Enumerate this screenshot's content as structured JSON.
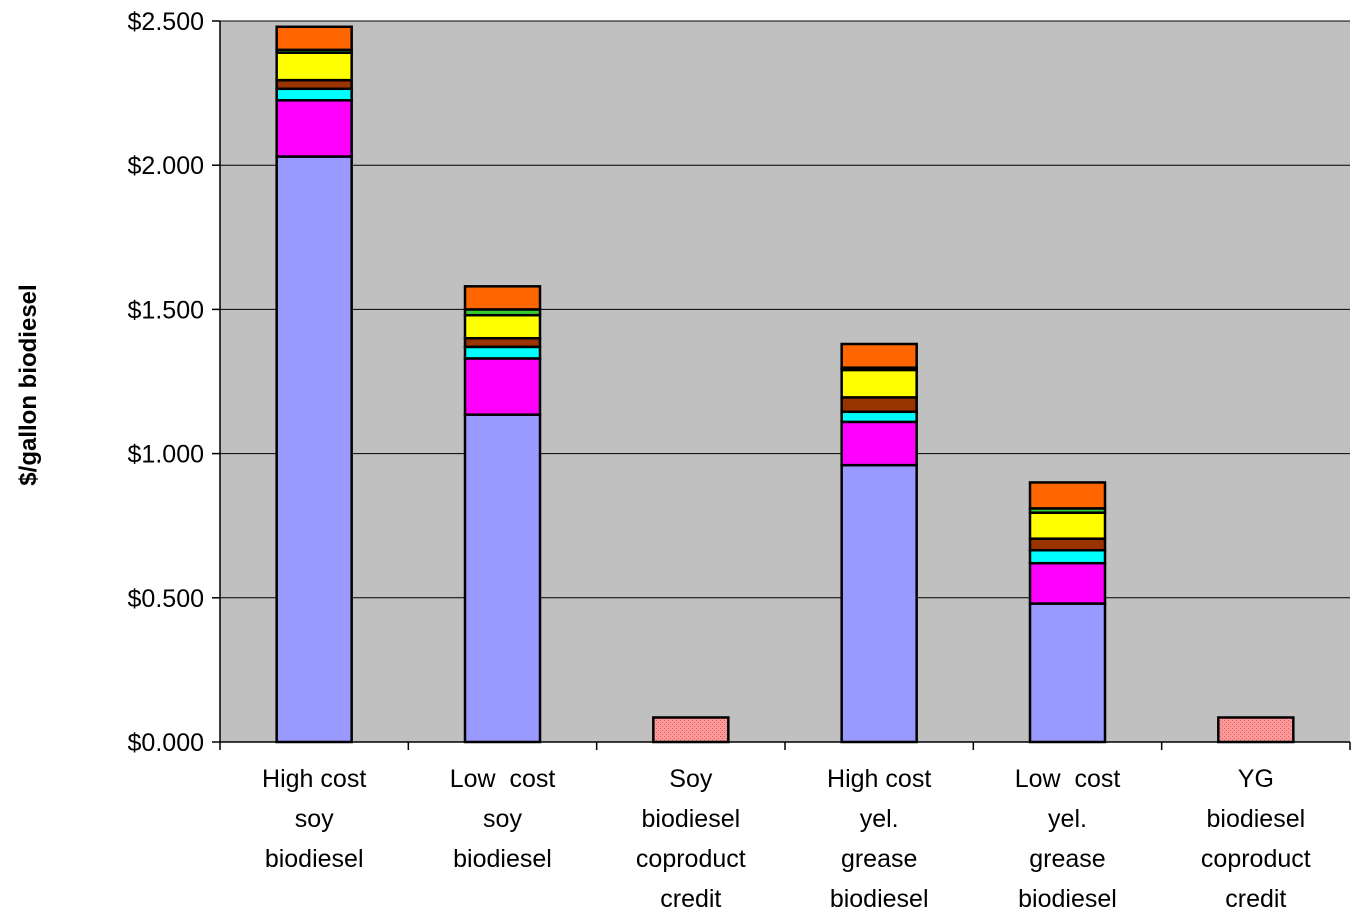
{
  "chart_data": {
    "type": "bar",
    "stacked": true,
    "title": "",
    "xlabel": "",
    "ylabel": "$/gallon biodiesel",
    "ylim": [
      0,
      2.5
    ],
    "y_ticks": [
      {
        "value": 0.0,
        "label": "$0.000"
      },
      {
        "value": 0.5,
        "label": "$0.500"
      },
      {
        "value": 1.0,
        "label": "$1.000"
      },
      {
        "value": 1.5,
        "label": "$1.500"
      },
      {
        "value": 2.0,
        "label": "$2.000"
      },
      {
        "value": 2.5,
        "label": "$2.500"
      }
    ],
    "grid": true,
    "legend": "none",
    "categories": [
      [
        "High cost",
        "soy",
        "biodiesel"
      ],
      [
        "Low  cost",
        "soy",
        "biodiesel"
      ],
      [
        "Soy",
        "biodiesel",
        "coproduct",
        "credit"
      ],
      [
        "High cost",
        "yel.",
        "grease",
        "biodiesel"
      ],
      [
        "Low  cost",
        "yel.",
        "grease",
        "biodiesel"
      ],
      [
        "YG",
        "biodiesel",
        "coproduct",
        "credit"
      ]
    ],
    "series": [
      {
        "color": "#9999ff",
        "values": [
          2.03,
          1.135,
          0,
          0.96,
          0.48,
          0
        ]
      },
      {
        "color": "#ff00ff",
        "values": [
          0.195,
          0.195,
          0,
          0.15,
          0.14,
          0
        ]
      },
      {
        "color": "#00ffff",
        "values": [
          0.04,
          0.04,
          0,
          0.035,
          0.045,
          0
        ]
      },
      {
        "color": "#993300",
        "values": [
          0.03,
          0.03,
          0,
          0.05,
          0.04,
          0
        ]
      },
      {
        "color": "#ffff00",
        "values": [
          0.095,
          0.08,
          0,
          0.095,
          0.09,
          0
        ]
      },
      {
        "color": "#33cc33",
        "values": [
          0.01,
          0.02,
          0,
          0.008,
          0.015,
          0
        ]
      },
      {
        "color": "#ff6600",
        "values": [
          0.08,
          0.08,
          0,
          0.082,
          0.09,
          0
        ]
      },
      {
        "color": "#ff9999",
        "pattern": true,
        "values": [
          0,
          0,
          0.085,
          0,
          0,
          0.085
        ]
      }
    ]
  }
}
